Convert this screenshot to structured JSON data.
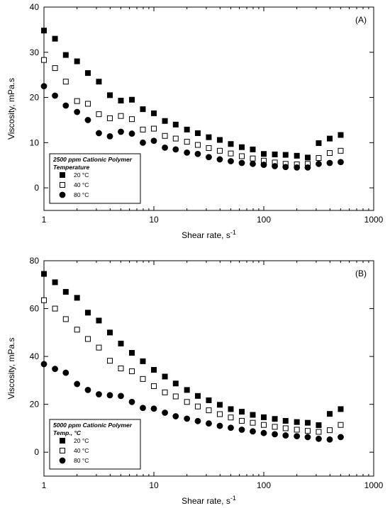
{
  "chart_data": [
    {
      "type": "scatter",
      "annotation": "(A)",
      "xlabel": "Shear rate, s",
      "xlabel_superscript": "-1",
      "ylabel": "Viscosity, mPa.s",
      "xscale": "log",
      "xlim": [
        1,
        1000
      ],
      "xticks": [
        1,
        10,
        100,
        1000
      ],
      "ylim": [
        -5,
        40
      ],
      "yticks": [
        0,
        10,
        20,
        30,
        40
      ],
      "legend_title": [
        "2500 ppm Cationic Polymer",
        "Temperature"
      ],
      "legend_position": "lower-left",
      "x": [
        1,
        1.26,
        1.58,
        2,
        2.51,
        3.16,
        3.98,
        5.01,
        6.31,
        7.94,
        10,
        12.6,
        15.8,
        20,
        25.1,
        31.6,
        39.8,
        50.1,
        63.1,
        79.4,
        100,
        126,
        158,
        200,
        251,
        316,
        398,
        501
      ],
      "series": [
        {
          "name": "20 °C",
          "color": "#000000",
          "marker": "square",
          "filled": true,
          "values": [
            34.8,
            33,
            29.4,
            28,
            25.4,
            23.5,
            20.5,
            19.3,
            19.5,
            17.4,
            16.5,
            14.8,
            14,
            12.9,
            12.1,
            11.2,
            10.6,
            9.7,
            9.0,
            8.5,
            7.5,
            7.4,
            7.3,
            7.1,
            6.7,
            9.9,
            10.9,
            11.7
          ]
        },
        {
          "name": "40 °C",
          "color": "#000000",
          "marker": "square",
          "filled": false,
          "values": [
            28.3,
            26.5,
            23.5,
            19.2,
            18.6,
            16.3,
            15.4,
            15.9,
            15.2,
            12.9,
            13.1,
            11.5,
            10.9,
            10.2,
            9.5,
            8.8,
            8.2,
            7.6,
            7.0,
            6.5,
            6.0,
            5.6,
            5.3,
            5.2,
            5.3,
            6.6,
            7.7,
            8.2
          ]
        },
        {
          "name": "80 °C",
          "color": "#000000",
          "marker": "circle",
          "filled": true,
          "values": [
            22.5,
            20.4,
            18.2,
            16.8,
            15.0,
            12.1,
            11.4,
            12.4,
            12.0,
            10.0,
            10.4,
            8.9,
            8.5,
            7.8,
            7.5,
            6.8,
            6.3,
            5.9,
            5.5,
            5.3,
            5.1,
            4.8,
            4.6,
            4.5,
            4.5,
            5.3,
            5.5,
            5.7
          ]
        }
      ]
    },
    {
      "type": "scatter",
      "annotation": "(B)",
      "xlabel": "Shear rate, s",
      "xlabel_superscript": "-1",
      "ylabel": "Viscosity, mPa.s",
      "xscale": "log",
      "xlim": [
        1,
        1000
      ],
      "xticks": [
        1,
        10,
        100,
        1000
      ],
      "ylim": [
        -10,
        80
      ],
      "yticks": [
        0,
        20,
        40,
        60,
        80
      ],
      "legend_title": [
        "5000 ppm Cationic Polymer",
        "Temp., °C"
      ],
      "legend_position": "lower-left",
      "x": [
        1,
        1.26,
        1.58,
        2,
        2.51,
        3.16,
        3.98,
        5.01,
        6.31,
        7.94,
        10,
        12.6,
        15.8,
        20,
        25.1,
        31.6,
        39.8,
        50.1,
        63.1,
        79.4,
        100,
        126,
        158,
        200,
        251,
        316,
        398,
        501
      ],
      "series": [
        {
          "name": "20 °C",
          "color": "#000000",
          "marker": "square",
          "filled": true,
          "values": [
            74.5,
            71,
            67,
            64.5,
            58.3,
            55,
            50,
            45.4,
            41.5,
            38,
            34.4,
            31.6,
            28.7,
            26,
            23.5,
            21.7,
            19.8,
            18.0,
            16.9,
            15.6,
            14.6,
            13.9,
            13.1,
            12.6,
            12.3,
            11.3,
            16.0,
            18.0
          ]
        },
        {
          "name": "40 °C",
          "color": "#000000",
          "marker": "square",
          "filled": false,
          "values": [
            63.5,
            60,
            55.6,
            51.2,
            47.3,
            43.7,
            38.2,
            35,
            33.8,
            30.6,
            27.6,
            25,
            23.3,
            21,
            19.1,
            17.5,
            15.9,
            14.5,
            13.1,
            12.3,
            11.4,
            10.6,
            10.0,
            9.4,
            8.9,
            8.5,
            9.2,
            11.4
          ]
        },
        {
          "name": "80 °C",
          "color": "#000000",
          "marker": "circle",
          "filled": true,
          "values": [
            36.8,
            34.8,
            33.2,
            28.5,
            26,
            24.2,
            23.8,
            23.5,
            21,
            18.5,
            18.2,
            16.5,
            15,
            14,
            13,
            12,
            11,
            10.2,
            9.4,
            8.7,
            8,
            7.5,
            7,
            6.7,
            6.3,
            5.6,
            5.3,
            6.3
          ]
        }
      ]
    }
  ]
}
